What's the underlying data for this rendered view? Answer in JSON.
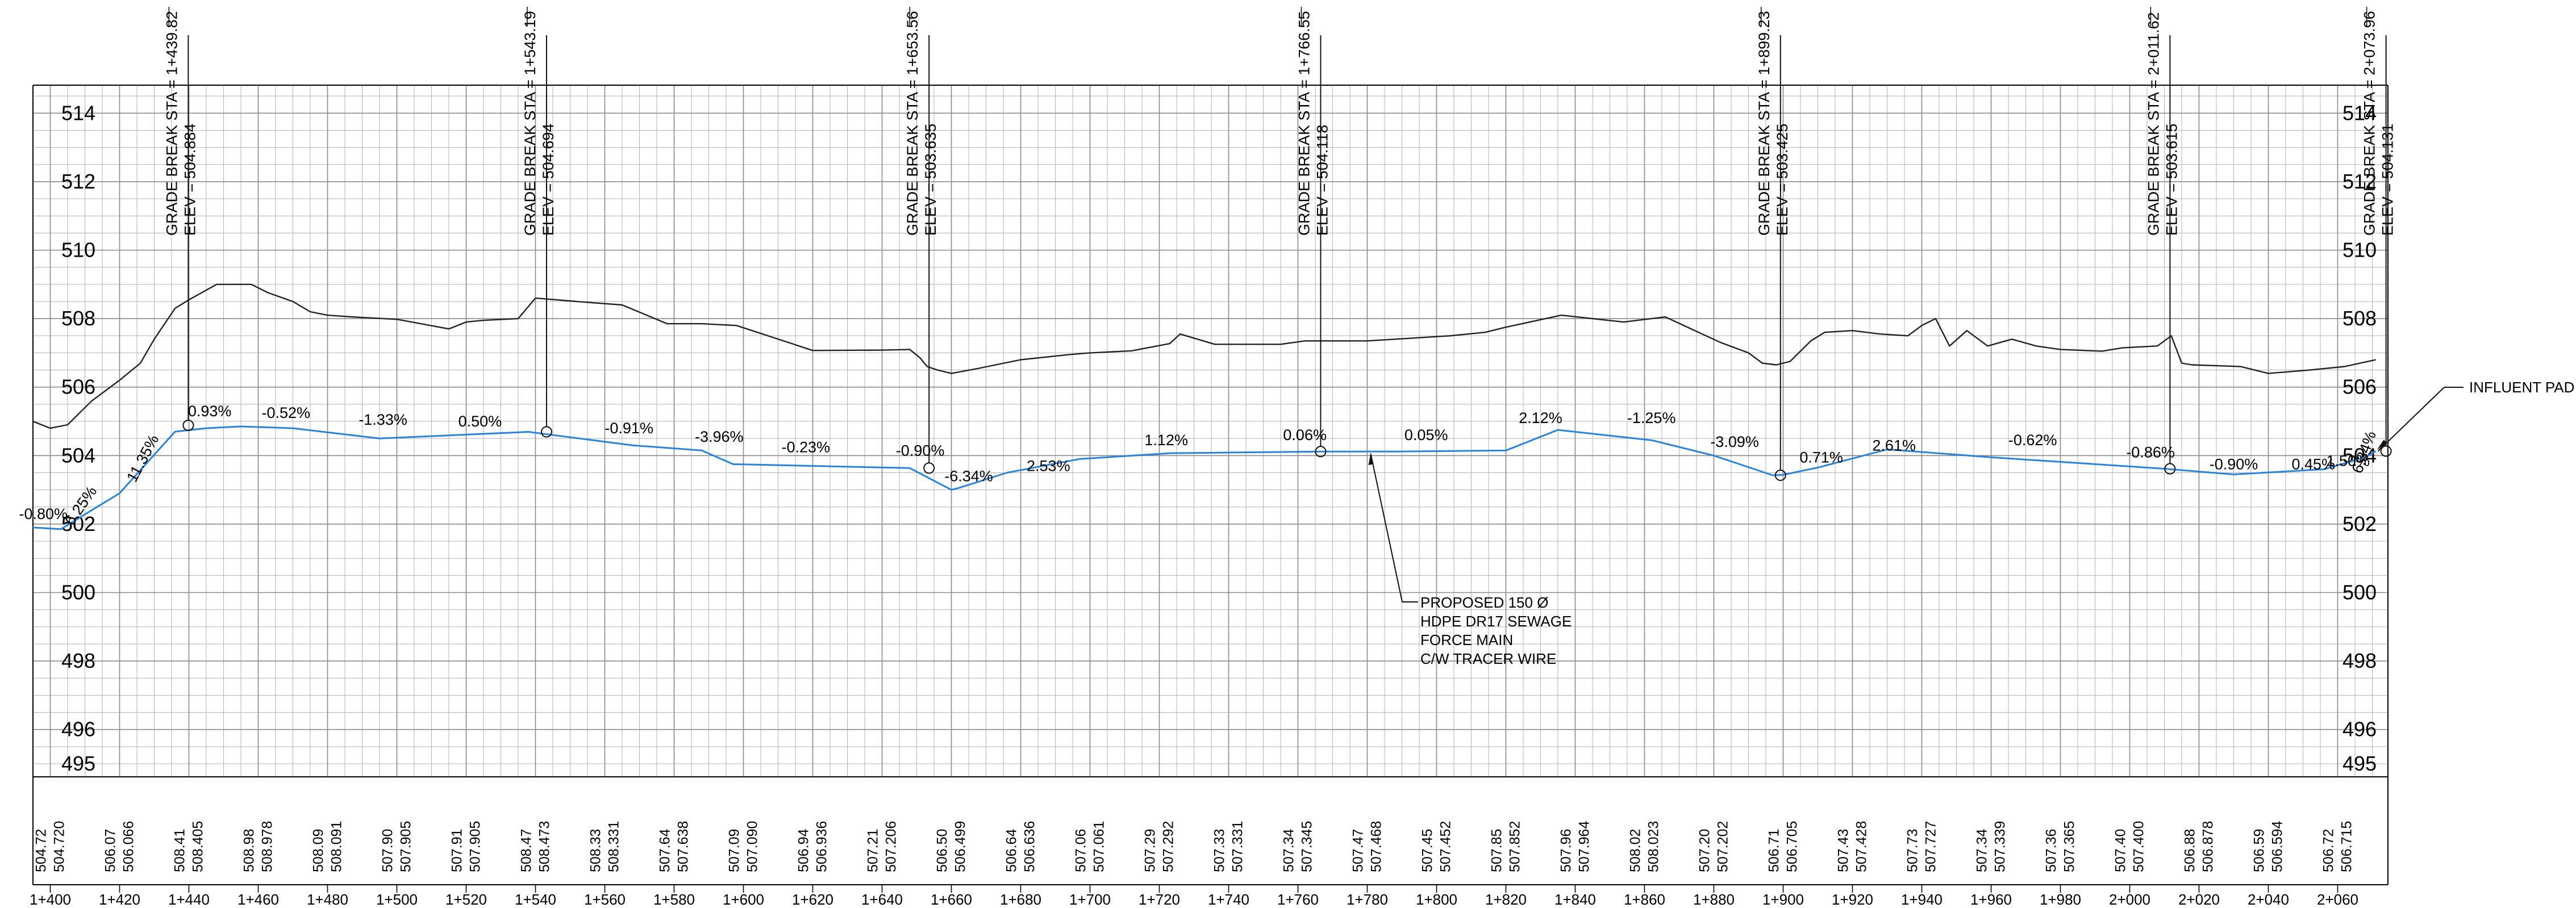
{
  "chart_data": {
    "type": "line",
    "x_range": [
      1395,
      2071
    ],
    "ylim": [
      495,
      515
    ],
    "elev_labels": [
      514,
      512,
      510,
      508,
      506,
      504,
      502,
      500,
      498,
      496,
      495
    ],
    "station_labels": [
      "1+400",
      "1+420",
      "1+440",
      "1+460",
      "1+480",
      "1+500",
      "1+520",
      "1+540",
      "1+560",
      "1+580",
      "1+600",
      "1+620",
      "1+640",
      "1+660",
      "1+680",
      "1+700",
      "1+720",
      "1+740",
      "1+760",
      "1+780",
      "1+800",
      "1+820",
      "1+840",
      "1+860",
      "1+880",
      "1+900",
      "1+920",
      "1+940",
      "1+960",
      "1+980",
      "2+000",
      "2+020",
      "2+040",
      "2+060"
    ],
    "station_values": [
      1400,
      1420,
      1440,
      1460,
      1480,
      1500,
      1520,
      1540,
      1560,
      1580,
      1600,
      1620,
      1640,
      1660,
      1680,
      1700,
      1720,
      1740,
      1760,
      1780,
      1800,
      1820,
      1840,
      1860,
      1880,
      1900,
      1920,
      1940,
      1960,
      1980,
      2000,
      2020,
      2040,
      2060
    ],
    "ground_elevations": [
      "504.72",
      "506.07",
      "508.41",
      "508.98",
      "508.09",
      "507.90",
      "507.91",
      "508.47",
      "508.33",
      "507.64",
      "507.09",
      "506.94",
      "507.21",
      "506.50",
      "506.64",
      "507.06",
      "507.29",
      "507.33",
      "507.34",
      "507.47",
      "507.45",
      "507.85",
      "507.96",
      "508.02",
      "507.20",
      "506.71",
      "507.43",
      "507.73",
      "507.34",
      "507.36",
      "507.40",
      "506.88",
      "506.59",
      "506.72"
    ],
    "pipe_elevations": [
      "504.720",
      "506.066",
      "508.405",
      "508.978",
      "508.091",
      "507.905",
      "507.905",
      "508.473",
      "508.331",
      "507.638",
      "507.090",
      "506.936",
      "507.206",
      "506.499",
      "506.636",
      "507.061",
      "507.292",
      "507.331",
      "507.345",
      "507.468",
      "507.452",
      "507.852",
      "507.964",
      "508.023",
      "507.202",
      "506.705",
      "507.428",
      "507.727",
      "507.339",
      "507.365",
      "507.400",
      "506.878",
      "506.594",
      "506.715"
    ],
    "series": [
      {
        "name": "",
        "color": "#2b84d8",
        "x": [
          1395,
          1403,
          1420,
          1436,
          1445,
          1455,
          1470,
          1495,
          1538,
          1568,
          1588,
          1597,
          1648,
          1660,
          1662,
          1676,
          1697,
          1723,
          1766,
          1789,
          1820,
          1835,
          1862,
          1880,
          1897,
          1900,
          1910,
          1930,
          1960,
          1990,
          2010,
          2030,
          2056,
          2068,
          2071
        ],
        "y": [
          501.9,
          501.85,
          502.9,
          504.7,
          504.8,
          504.85,
          504.8,
          504.5,
          504.694,
          504.3,
          504.15,
          503.75,
          503.635,
          503.0,
          503.05,
          503.5,
          503.9,
          504.07,
          504.118,
          504.12,
          504.15,
          504.75,
          504.45,
          504.0,
          503.425,
          503.44,
          503.65,
          504.18,
          503.95,
          503.75,
          503.615,
          503.45,
          503.6,
          503.95,
          504.131
        ]
      },
      {
        "name": "",
        "color": "#222222",
        "x": [
          1395,
          1400,
          1405,
          1412,
          1420,
          1426,
          1430,
          1436,
          1440,
          1448,
          1458,
          1463,
          1470,
          1475,
          1480,
          1487,
          1500,
          1515,
          1520,
          1525,
          1535,
          1540,
          1552,
          1565,
          1578,
          1588,
          1598,
          1620,
          1640,
          1648,
          1651,
          1653,
          1656,
          1660,
          1668,
          1680,
          1694,
          1700,
          1712,
          1723,
          1726,
          1736,
          1755,
          1762,
          1780,
          1796,
          1804,
          1814,
          1820,
          1836,
          1854,
          1866,
          1882,
          1890,
          1894,
          1898,
          1902,
          1908,
          1912,
          1920,
          1928,
          1936,
          1940,
          1944,
          1948,
          1953,
          1959,
          1966,
          1973,
          1980,
          1992,
          1998,
          2008,
          2012,
          2015,
          2018,
          2032,
          2040,
          2052,
          2062,
          2071
        ],
        "y": [
          505.0,
          504.8,
          504.9,
          505.6,
          506.2,
          506.7,
          507.4,
          508.3,
          508.55,
          509.0,
          509.0,
          508.75,
          508.5,
          508.2,
          508.1,
          508.05,
          507.98,
          507.7,
          507.9,
          507.95,
          508.0,
          508.6,
          508.5,
          508.4,
          507.85,
          507.85,
          507.8,
          507.07,
          507.08,
          507.1,
          506.85,
          506.6,
          506.5,
          506.4,
          506.55,
          506.8,
          506.95,
          507.0,
          507.06,
          507.27,
          507.55,
          507.25,
          507.25,
          507.35,
          507.35,
          507.45,
          507.5,
          507.6,
          507.75,
          508.1,
          507.9,
          508.05,
          507.3,
          507.0,
          506.7,
          506.65,
          506.75,
          507.35,
          507.6,
          507.65,
          507.55,
          507.5,
          507.8,
          508.0,
          507.2,
          507.65,
          507.2,
          507.4,
          507.2,
          507.1,
          507.05,
          507.15,
          507.2,
          507.5,
          506.7,
          506.65,
          506.6,
          506.4,
          506.5,
          506.6,
          506.8
        ]
      }
    ],
    "grade_labels": [
      {
        "text": "-0.80%",
        "x": 1398,
        "y": 502.15,
        "angle": 0
      },
      {
        "text": "6.25%",
        "x": 1410,
        "y": 502.45,
        "angle": -55
      },
      {
        "text": "11.35%",
        "x": 1428,
        "y": 503.85,
        "angle": -62
      },
      {
        "text": "0.93%",
        "x": 1446,
        "y": 505.15,
        "angle": 0
      },
      {
        "text": "-0.52%",
        "x": 1468,
        "y": 505.1,
        "angle": 0
      },
      {
        "text": "-1.33%",
        "x": 1496,
        "y": 504.9,
        "angle": 0
      },
      {
        "text": "0.50%",
        "x": 1524,
        "y": 504.85,
        "angle": 0
      },
      {
        "text": "-0.91%",
        "x": 1567,
        "y": 504.65,
        "angle": 0
      },
      {
        "text": "-3.96%",
        "x": 1593,
        "y": 504.4,
        "angle": 0
      },
      {
        "text": "-0.23%",
        "x": 1618,
        "y": 504.1,
        "angle": 0
      },
      {
        "text": "-0.90%",
        "x": 1651,
        "y": 504.0,
        "angle": 0
      },
      {
        "text": "-6.34%",
        "x": 1665,
        "y": 503.25,
        "angle": 0
      },
      {
        "text": "2.53%",
        "x": 1688,
        "y": 503.55,
        "angle": 0
      },
      {
        "text": "1.12%",
        "x": 1722,
        "y": 504.3,
        "angle": 0
      },
      {
        "text": "0.06%",
        "x": 1762,
        "y": 504.45,
        "angle": 0
      },
      {
        "text": "0.05%",
        "x": 1797,
        "y": 504.45,
        "angle": 0
      },
      {
        "text": "2.12%",
        "x": 1830,
        "y": 504.95,
        "angle": 0
      },
      {
        "text": "-1.25%",
        "x": 1862,
        "y": 504.95,
        "angle": 0
      },
      {
        "text": "-3.09%",
        "x": 1886,
        "y": 504.25,
        "angle": 0
      },
      {
        "text": "0.71%",
        "x": 1911,
        "y": 503.8,
        "angle": 0
      },
      {
        "text": "2.61%",
        "x": 1932,
        "y": 504.15,
        "angle": 0
      },
      {
        "text": "-0.62%",
        "x": 1972,
        "y": 504.3,
        "angle": 0
      },
      {
        "text": "-0.86%",
        "x": 2006,
        "y": 503.95,
        "angle": 0
      },
      {
        "text": "-0.90%",
        "x": 2030,
        "y": 503.6,
        "angle": 0
      },
      {
        "text": "0.45%",
        "x": 2053,
        "y": 503.6,
        "angle": 0
      },
      {
        "text": "1.50%",
        "x": 2063,
        "y": 503.7,
        "angle": 0
      },
      {
        "text": "6.34%",
        "x": 2069,
        "y": 504.05,
        "angle": -70
      }
    ],
    "grade_breaks": [
      {
        "sta": 1439.82,
        "elev": 504.884,
        "sta_text": "GRADE BREAK STA = 1+439.82",
        "elev_text": "ELEV =  504.884"
      },
      {
        "sta": 1543.19,
        "elev": 504.694,
        "sta_text": "GRADE BREAK STA = 1+543.19",
        "elev_text": "ELEV =  504.694"
      },
      {
        "sta": 1653.56,
        "elev": 503.635,
        "sta_text": "GRADE BREAK STA = 1+653.56",
        "elev_text": "ELEV =  503.635"
      },
      {
        "sta": 1766.55,
        "elev": 504.118,
        "sta_text": "GRADE BREAK STA = 1+766.55",
        "elev_text": "ELEV =  504.118"
      },
      {
        "sta": 1899.23,
        "elev": 503.425,
        "sta_text": "GRADE BREAK STA = 1+899.23",
        "elev_text": "ELEV =  503.425"
      },
      {
        "sta": 2011.62,
        "elev": 503.615,
        "sta_text": "GRADE BREAK STA = 2+011.62",
        "elev_text": "ELEV =  503.615"
      },
      {
        "sta": 2073.96,
        "elev": 504.131,
        "sta_text": "GRADE BREAK STA = 2+073.96",
        "elev_text": "ELEV =  504.131"
      }
    ],
    "callouts": [
      {
        "lines": [
          "PROPOSED 150 Ø",
          "HDPE DR17 SEWAGE",
          "FORCE MAIN",
          "C/W TRACER WIRE"
        ],
        "sta": 1781,
        "elev": 504.12
      },
      {
        "lines": [
          "INFLUENT PAD"
        ],
        "sta": 2071,
        "elev": 504.131
      }
    ]
  }
}
